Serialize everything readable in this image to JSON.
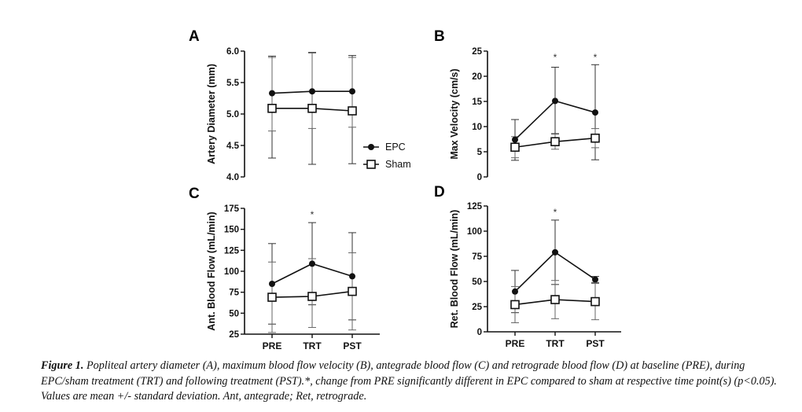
{
  "caption": "Figure 1. Popliteal artery diameter (A), maximum blood flow velocity (B), antegrade blood flow (C) and retrograde blood flow (D) at baseline (PRE), during EPC/sham treatment (TRT) and following treatment (PST).*, change from PRE significantly different in EPC compared to sham at respective time point(s) (p<0.05). Values are mean +/- standard deviation. Ant, antegrade; Ret, retrograde.",
  "legend": [
    {
      "name": "EPC",
      "marker": "filled-circle"
    },
    {
      "name": "Sham",
      "marker": "open-square"
    }
  ],
  "legend_placement": "right of panel A",
  "chart_data": [
    {
      "panel": "A",
      "type": "line",
      "categories": [
        "PRE",
        "TRT",
        "PST"
      ],
      "ylabel": "Artery Diameter (mm)",
      "xlabel": "",
      "ylim": [
        4.0,
        6.0
      ],
      "yticks": [
        "4.0",
        "4.5",
        "5.0",
        "5.5",
        "6.0"
      ],
      "show_xticklabels": false,
      "significance": [
        false,
        false,
        false
      ],
      "series": [
        {
          "name": "EPC",
          "values": [
            5.33,
            5.36,
            5.36
          ],
          "err_upper": [
            5.92,
            5.98,
            5.93
          ],
          "err_lower": [
            4.3,
            4.2,
            4.21
          ]
        },
        {
          "name": "Sham",
          "values": [
            5.09,
            5.09,
            5.05
          ],
          "err_upper": [
            5.9,
            5.97,
            5.9
          ],
          "err_lower": [
            4.73,
            4.77,
            4.79
          ]
        }
      ]
    },
    {
      "panel": "B",
      "type": "line",
      "categories": [
        "PRE",
        "TRT",
        "PST"
      ],
      "ylabel": "Max Velocity (cm/s)",
      "xlabel": "",
      "ylim": [
        0,
        25
      ],
      "yticks": [
        "0",
        "5",
        "10",
        "15",
        "20",
        "25"
      ],
      "show_xticklabels": false,
      "significance": [
        false,
        true,
        true
      ],
      "series": [
        {
          "name": "EPC",
          "values": [
            7.4,
            15.1,
            12.8
          ],
          "err_upper": [
            11.4,
            21.8,
            22.3
          ],
          "err_lower": [
            3.3,
            8.6,
            3.4
          ]
        },
        {
          "name": "Sham",
          "values": [
            5.9,
            7.0,
            7.7
          ],
          "err_upper": [
            8.0,
            8.5,
            9.6
          ],
          "err_lower": [
            3.8,
            5.5,
            5.8
          ]
        }
      ]
    },
    {
      "panel": "C",
      "type": "line",
      "categories": [
        "PRE",
        "TRT",
        "PST"
      ],
      "ylabel": "Ant. Blood Flow (mL/min)",
      "xlabel": "",
      "ylim": [
        25,
        175
      ],
      "yticks": [
        "25",
        "50",
        "75",
        "100",
        "125",
        "150",
        "175"
      ],
      "show_xticklabels": true,
      "significance": [
        false,
        true,
        false
      ],
      "series": [
        {
          "name": "EPC",
          "values": [
            85,
            109,
            94
          ],
          "err_upper": [
            133,
            158,
            146
          ],
          "err_lower": [
            37,
            60,
            42
          ]
        },
        {
          "name": "Sham",
          "values": [
            69,
            70,
            76
          ],
          "err_upper": [
            111,
            115,
            122
          ],
          "err_lower": [
            27,
            33,
            30
          ]
        }
      ]
    },
    {
      "panel": "D",
      "type": "line",
      "categories": [
        "PRE",
        "TRT",
        "PST"
      ],
      "ylabel": "Ret. Blood Flow (mL/min)",
      "xlabel": "",
      "ylim": [
        0,
        125
      ],
      "yticks": [
        "0",
        "25",
        "50",
        "75",
        "100",
        "125"
      ],
      "show_xticklabels": true,
      "significance": [
        false,
        true,
        false
      ],
      "series": [
        {
          "name": "EPC",
          "values": [
            40,
            79,
            52
          ],
          "err_upper": [
            61,
            111,
            55
          ],
          "err_lower": [
            19,
            47,
            49
          ]
        },
        {
          "name": "Sham",
          "values": [
            27,
            32,
            30
          ],
          "err_upper": [
            45,
            51,
            48
          ],
          "err_lower": [
            9,
            13,
            12
          ]
        }
      ]
    }
  ]
}
